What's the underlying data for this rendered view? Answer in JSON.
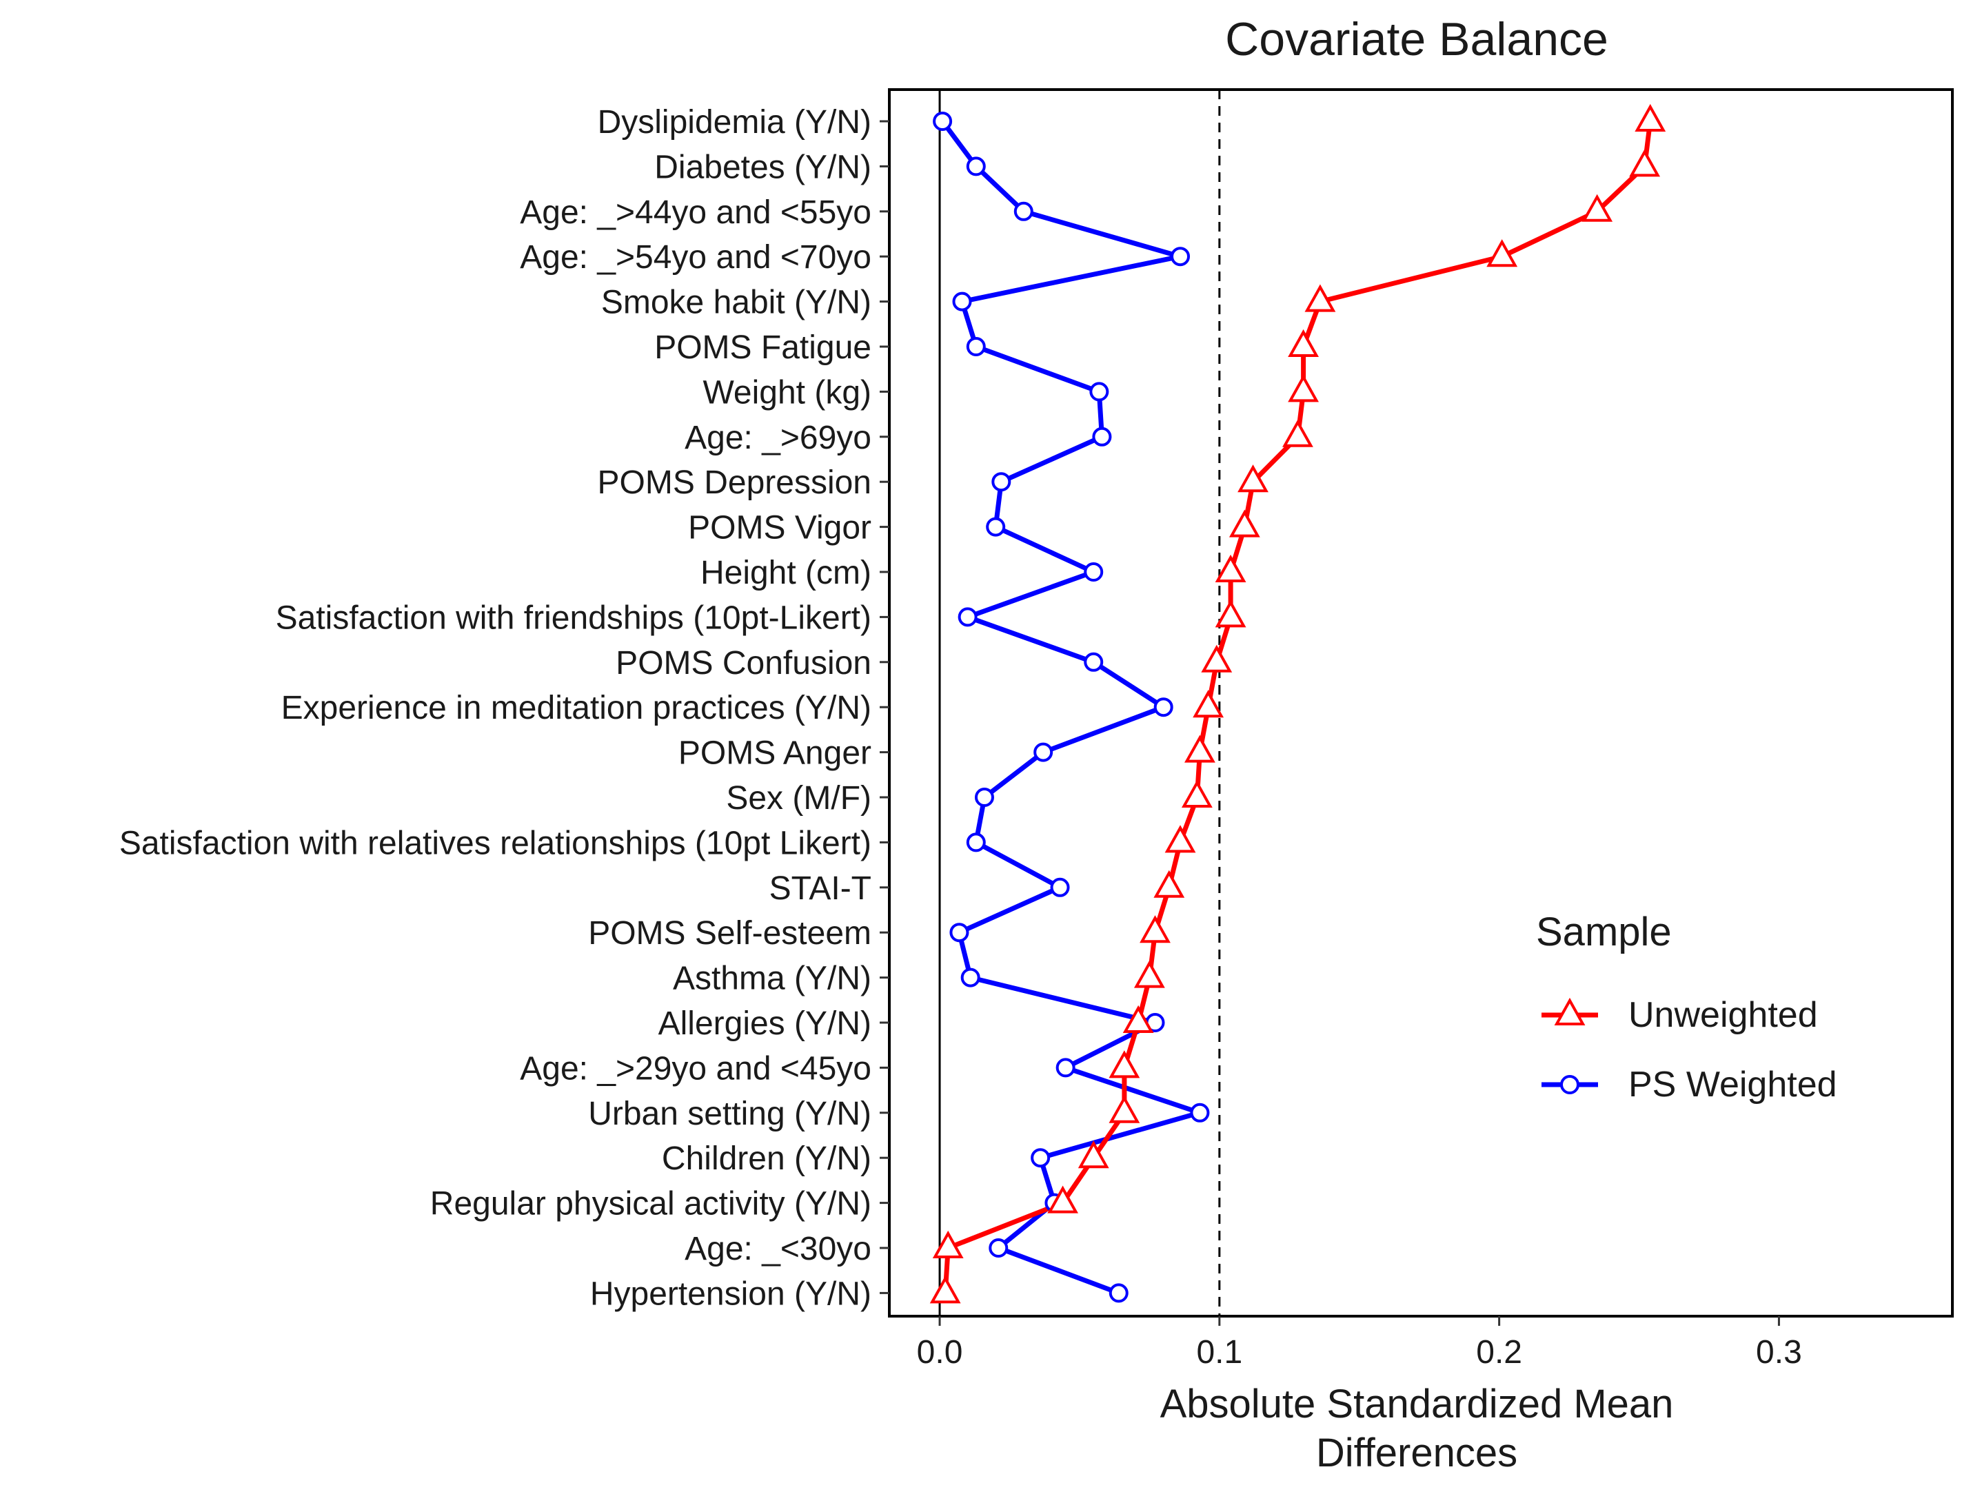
{
  "chart_data": {
    "type": "line",
    "title": "Covariate Balance",
    "xlabel_lines": [
      "Absolute Standardized Mean",
      "Differences"
    ],
    "ylabel": "",
    "xlim": [
      -0.018,
      0.362
    ],
    "x_ticks": [
      0.0,
      0.1,
      0.2,
      0.3
    ],
    "x_tick_labels": [
      "0.0",
      "0.1",
      "0.2",
      "0.3"
    ],
    "threshold_line": 0.1,
    "zero_line": 0.0,
    "grid": false,
    "legend": {
      "title": "Sample",
      "position": "right",
      "entries": [
        "Unweighted",
        "PS Weighted"
      ]
    },
    "categories": [
      "Dyslipidemia (Y/N)",
      "Diabetes (Y/N)",
      "Age: _>44yo and <55yo",
      "Age: _>54yo and <70yo",
      "Smoke habit (Y/N)",
      "POMS Fatigue",
      "Weight (kg)",
      "Age: _>69yo",
      "POMS Depression",
      "POMS Vigor",
      "Height (cm)",
      "Satisfaction with friendships (10pt-Likert)",
      "POMS Confusion",
      "Experience in meditation practices (Y/N)",
      "POMS Anger",
      "Sex (M/F)",
      "Satisfaction with relatives relationships (10pt Likert)",
      "STAI-T",
      "POMS Self-esteem",
      "Asthma (Y/N)",
      "Allergies (Y/N)",
      "Age: _>29yo and <45yo",
      "Urban setting (Y/N)",
      "Children (Y/N)",
      "Regular physical activity (Y/N)",
      "Age: _<30yo",
      "Hypertension (Y/N)"
    ],
    "series": [
      {
        "name": "Unweighted",
        "color": "#ff0000",
        "marker": "triangle",
        "values": [
          0.254,
          0.252,
          0.235,
          0.201,
          0.136,
          0.13,
          0.13,
          0.128,
          0.112,
          0.109,
          0.104,
          0.104,
          0.099,
          0.096,
          0.093,
          0.092,
          0.086,
          0.082,
          0.077,
          0.075,
          0.071,
          0.066,
          0.066,
          0.055,
          0.044,
          0.003,
          0.002
        ]
      },
      {
        "name": "PS Weighted",
        "color": "#0000ff",
        "marker": "circle",
        "values": [
          0.001,
          0.013,
          0.03,
          0.086,
          0.008,
          0.013,
          0.057,
          0.058,
          0.022,
          0.02,
          0.055,
          0.01,
          0.055,
          0.08,
          0.037,
          0.016,
          0.013,
          0.043,
          0.007,
          0.011,
          0.077,
          0.045,
          0.093,
          0.036,
          0.041,
          0.021,
          0.064
        ]
      }
    ]
  }
}
